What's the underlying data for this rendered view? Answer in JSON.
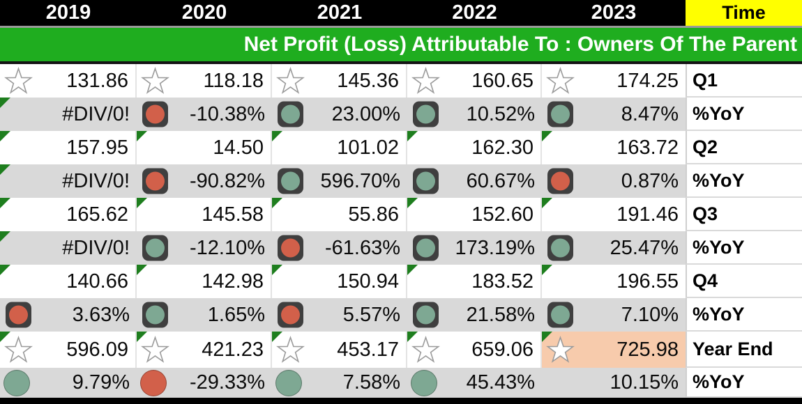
{
  "title": "Net Profit (Loss) Attributable To : Owners Of The Parent",
  "header": {
    "years": [
      "2019",
      "2020",
      "2021",
      "2022",
      "2023"
    ],
    "time_label": "Time"
  },
  "colors": {
    "title_bar_green": "#1FAD1F",
    "time_header_yellow": "#FFFF00",
    "stripe_gray": "#D9D9D9",
    "highlight_peach": "#F7CBAC",
    "comment_triangle_green": "#1E7E1E",
    "indicator_positive_green": "#7EA893",
    "indicator_negative_red": "#D2604A",
    "indicator_frame_dark": "#3F3F3F"
  },
  "rows": [
    {
      "label": "Q1",
      "shade": "white",
      "cells": [
        {
          "icon": "star",
          "value": "131.86"
        },
        {
          "icon": "star",
          "value": "118.18"
        },
        {
          "icon": "star",
          "value": "145.36"
        },
        {
          "icon": "star",
          "value": "160.65"
        },
        {
          "icon": "star",
          "value": "174.25"
        }
      ]
    },
    {
      "label": "%YoY",
      "shade": "gray",
      "cells": [
        {
          "triangle": true,
          "value": "#DIV/0!"
        },
        {
          "icon": "square-red",
          "value": "-10.38%"
        },
        {
          "icon": "square-green",
          "value": "23.00%"
        },
        {
          "icon": "square-green",
          "value": "10.52%"
        },
        {
          "icon": "square-green",
          "value": "8.47%"
        }
      ]
    },
    {
      "label": "Q2",
      "shade": "white",
      "cells": [
        {
          "triangle": true,
          "value": "157.95"
        },
        {
          "triangle": true,
          "value": "14.50"
        },
        {
          "triangle": true,
          "value": "101.02"
        },
        {
          "triangle": true,
          "value": "162.30"
        },
        {
          "triangle": true,
          "value": "163.72"
        }
      ]
    },
    {
      "label": "%YoY",
      "shade": "gray",
      "cells": [
        {
          "triangle": true,
          "value": "#DIV/0!"
        },
        {
          "icon": "square-red",
          "value": "-90.82%"
        },
        {
          "icon": "square-green",
          "value": "596.70%"
        },
        {
          "icon": "square-green",
          "value": "60.67%"
        },
        {
          "icon": "square-red",
          "value": "0.87%"
        }
      ]
    },
    {
      "label": "Q3",
      "shade": "white",
      "cells": [
        {
          "triangle": true,
          "value": "165.62"
        },
        {
          "triangle": true,
          "value": "145.58"
        },
        {
          "triangle": true,
          "value": "55.86"
        },
        {
          "triangle": true,
          "value": "152.60"
        },
        {
          "triangle": true,
          "value": "191.46"
        }
      ]
    },
    {
      "label": "%YoY",
      "shade": "gray",
      "cells": [
        {
          "triangle": true,
          "value": "#DIV/0!"
        },
        {
          "icon": "square-green",
          "value": "-12.10%"
        },
        {
          "icon": "square-red",
          "value": "-61.63%"
        },
        {
          "icon": "square-green",
          "value": "173.19%"
        },
        {
          "icon": "square-green",
          "value": "25.47%"
        }
      ]
    },
    {
      "label": "Q4",
      "shade": "white",
      "cells": [
        {
          "triangle": true,
          "value": "140.66"
        },
        {
          "triangle": true,
          "value": "142.98"
        },
        {
          "triangle": true,
          "value": "150.94"
        },
        {
          "triangle": true,
          "value": "183.52"
        },
        {
          "triangle": true,
          "value": "196.55"
        }
      ]
    },
    {
      "label": "%YoY",
      "shade": "gray",
      "cells": [
        {
          "icon": "square-red",
          "value": "3.63%"
        },
        {
          "icon": "square-green",
          "value": "1.65%"
        },
        {
          "icon": "square-red",
          "value": "5.57%"
        },
        {
          "icon": "square-green",
          "value": "21.58%"
        },
        {
          "icon": "square-green",
          "value": "7.10%"
        }
      ]
    },
    {
      "label": "Year End",
      "shade": "white",
      "cells": [
        {
          "triangle": true,
          "icon": "star",
          "value": "596.09"
        },
        {
          "triangle": true,
          "icon": "star",
          "value": "421.23"
        },
        {
          "triangle": true,
          "icon": "star",
          "value": "453.17"
        },
        {
          "triangle": true,
          "icon": "star",
          "value": "659.06"
        },
        {
          "triangle": true,
          "icon": "star",
          "value": "725.98",
          "highlight": true
        }
      ]
    },
    {
      "label": "%YoY",
      "shade": "gray",
      "cells": [
        {
          "icon": "circle-green",
          "value": "9.79%"
        },
        {
          "icon": "circle-red",
          "value": "-29.33%"
        },
        {
          "icon": "circle-green",
          "value": "7.58%"
        },
        {
          "icon": "circle-green",
          "value": "45.43%"
        },
        {
          "value": "10.15%"
        }
      ]
    }
  ]
}
